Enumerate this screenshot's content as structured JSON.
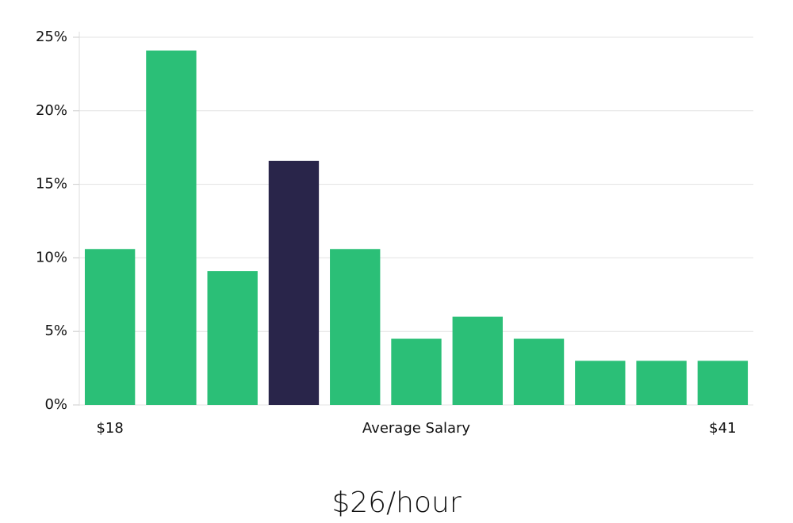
{
  "chart_data": {
    "type": "bar",
    "categories": [
      "$18",
      null,
      null,
      null,
      null,
      null,
      null,
      null,
      null,
      null,
      "$41"
    ],
    "values": [
      10.6,
      24.1,
      9.1,
      16.6,
      10.6,
      4.5,
      6.0,
      4.5,
      3.0,
      3.0,
      3.0
    ],
    "colors": [
      "#2bbf77",
      "#2bbf77",
      "#2bbf77",
      "#29254a",
      "#2bbf77",
      "#2bbf77",
      "#2bbf77",
      "#2bbf77",
      "#2bbf77",
      "#2bbf77",
      "#2bbf77"
    ],
    "x_label": "Average Salary",
    "annotation": "$26/hour",
    "ylim": [
      0,
      25
    ],
    "yticks": [
      {
        "value": 0,
        "label": "0%"
      },
      {
        "value": 5,
        "label": "5%"
      },
      {
        "value": 10,
        "label": "10%"
      },
      {
        "value": 15,
        "label": "15%"
      },
      {
        "value": 20,
        "label": "20%"
      },
      {
        "value": 25,
        "label": "25%"
      }
    ],
    "grid": true
  }
}
